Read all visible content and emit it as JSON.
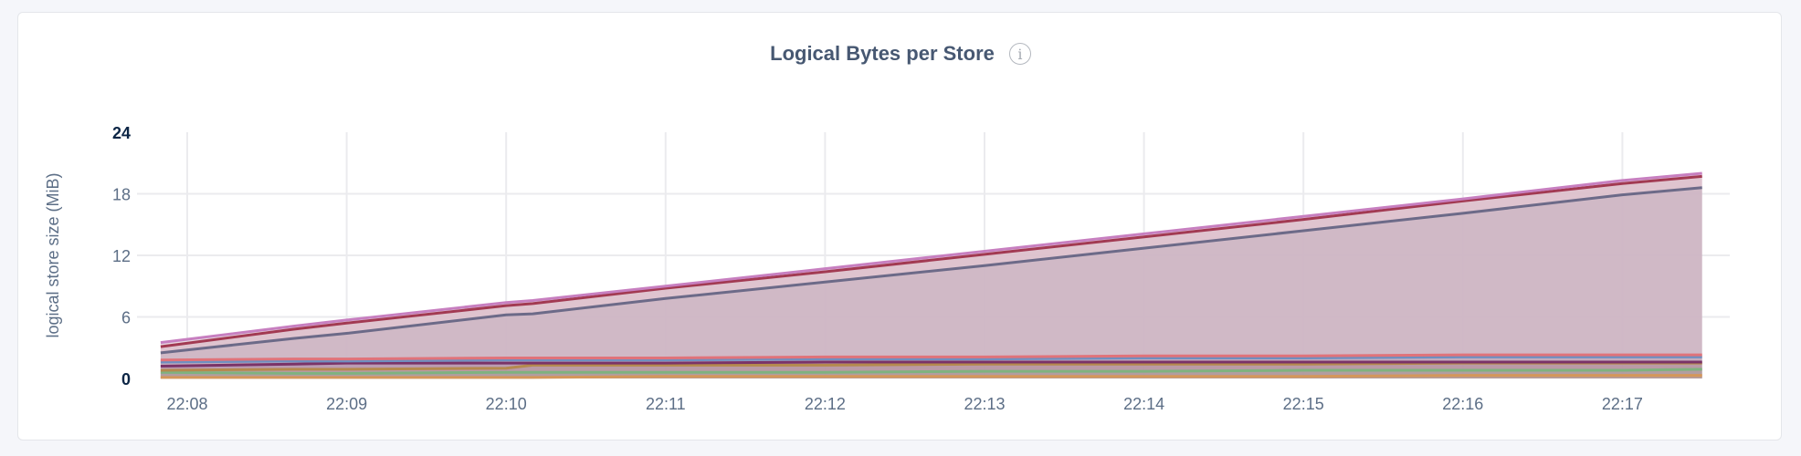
{
  "chart_data": {
    "type": "area",
    "title": "Logical Bytes per Store",
    "ylabel": "logical store size (MiB)",
    "xlabel": "",
    "ylim": [
      0,
      24
    ],
    "yticks": [
      "0",
      "6",
      "12",
      "18",
      "24"
    ],
    "xticks": [
      "22:08",
      "22:09",
      "22:10",
      "22:11",
      "22:12",
      "22:13",
      "22:14",
      "22:15",
      "22:16",
      "22:17"
    ],
    "grid": true,
    "legend": "none",
    "x": [
      "22:07:50",
      "22:08:40",
      "22:09:00",
      "22:10:00",
      "22:10:10",
      "22:11:00",
      "22:12:00",
      "22:13:00",
      "22:14:00",
      "22:15:00",
      "22:16:00",
      "22:17:00",
      "22:17:30"
    ],
    "series": [
      {
        "color": "#c77fc0",
        "values": [
          3.5,
          5.1,
          5.7,
          7.4,
          7.6,
          9.0,
          10.7,
          12.4,
          14.1,
          15.8,
          17.5,
          19.3,
          20.0
        ]
      },
      {
        "color": "#a23a52",
        "values": [
          3.1,
          4.8,
          5.4,
          7.1,
          7.3,
          8.8,
          10.4,
          12.1,
          13.8,
          15.5,
          17.3,
          19.0,
          19.7
        ]
      },
      {
        "color": "#6c6a88",
        "values": [
          2.5,
          3.9,
          4.4,
          6.2,
          6.3,
          7.8,
          9.4,
          11.0,
          12.7,
          14.4,
          16.1,
          17.9,
          18.6
        ]
      },
      {
        "color": "#e0737a",
        "values": [
          1.8,
          1.9,
          1.9,
          2.0,
          2.0,
          2.0,
          2.1,
          2.1,
          2.2,
          2.2,
          2.3,
          2.3,
          2.3
        ]
      },
      {
        "color": "#6f8fc0",
        "values": [
          1.6,
          1.7,
          1.7,
          1.8,
          1.8,
          1.8,
          1.9,
          1.9,
          2.0,
          2.0,
          2.1,
          2.1,
          2.1
        ]
      },
      {
        "color": "#7a3368",
        "values": [
          1.2,
          1.4,
          1.5,
          1.5,
          1.5,
          1.5,
          1.6,
          1.6,
          1.6,
          1.6,
          1.6,
          1.6,
          1.6
        ]
      },
      {
        "color": "#b58a4e",
        "values": [
          0.8,
          0.9,
          0.9,
          1.0,
          1.3,
          1.3,
          1.3,
          1.4,
          1.4,
          1.4,
          1.5,
          1.5,
          1.5
        ]
      },
      {
        "color": "#7fb27f",
        "values": [
          0.6,
          0.5,
          0.5,
          0.6,
          0.6,
          0.6,
          0.6,
          0.7,
          0.7,
          0.8,
          0.8,
          0.8,
          0.9
        ]
      },
      {
        "color": "#d4975a",
        "values": [
          0.1,
          0.1,
          0.1,
          0.1,
          0.1,
          0.2,
          0.2,
          0.2,
          0.2,
          0.2,
          0.3,
          0.3,
          0.3
        ]
      }
    ],
    "fill_color": "#e4d4de"
  },
  "info_icon": "info-circle-icon"
}
